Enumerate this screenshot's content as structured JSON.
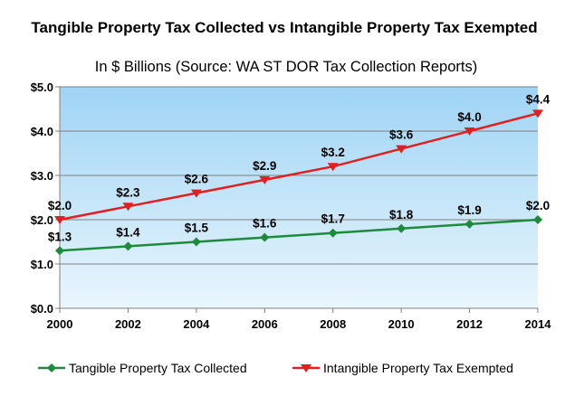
{
  "chart_data": {
    "type": "line",
    "title": "Tangible Property Tax Collected vs Intangible Property Tax Exempted",
    "subtitle": "In $ Billions (Source: WA ST DOR Tax Collection Reports)",
    "x": [
      "2000",
      "2002",
      "2004",
      "2006",
      "2008",
      "2010",
      "2012",
      "2014"
    ],
    "ylim": [
      0,
      5
    ],
    "yticks": [
      0,
      1,
      2,
      3,
      4,
      5
    ],
    "ytick_labels": [
      "$0.0",
      "$1.0",
      "$2.0",
      "$3.0",
      "$4.0",
      "$5.0"
    ],
    "grid": true,
    "legend_position": "bottom",
    "series": [
      {
        "name": "Tangible Property Tax Collected",
        "color": "#1e8a3c",
        "marker": "diamond",
        "values": [
          1.3,
          1.4,
          1.5,
          1.6,
          1.7,
          1.8,
          1.9,
          2.0
        ],
        "labels": [
          "$1.3",
          "$1.4",
          "$1.5",
          "$1.6",
          "$1.7",
          "$1.8",
          "$1.9",
          "$2.0"
        ]
      },
      {
        "name": "Intangible Property Tax Exempted",
        "color": "#e02020",
        "marker": "triangle-down",
        "values": [
          2.0,
          2.3,
          2.6,
          2.9,
          3.2,
          3.6,
          4.0,
          4.4
        ],
        "labels": [
          "$2.0",
          "$2.3",
          "$2.6",
          "$2.9",
          "$3.2",
          "$3.6",
          "$4.0",
          "$4.4"
        ]
      }
    ]
  }
}
